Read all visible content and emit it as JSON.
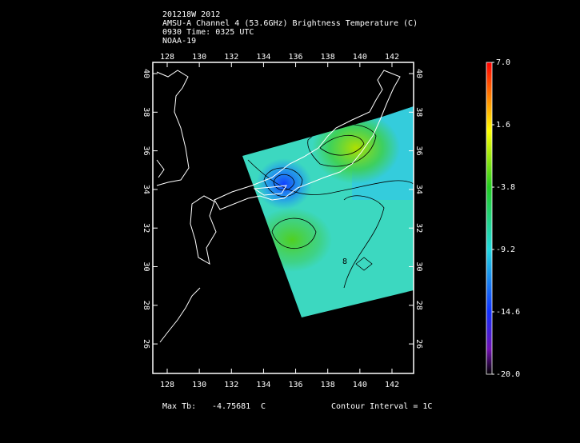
{
  "header": {
    "lines": [
      "201218W 2012",
      "AMSU-A Channel 4 (53.6GHz) Brightness Temperature (C)",
      "0930 Time: 0325 UTC",
      "NOAA-19"
    ]
  },
  "map": {
    "lon_ticks": [
      128,
      130,
      132,
      134,
      136,
      138,
      140,
      142
    ],
    "lat_ticks": [
      40,
      38,
      36,
      34,
      32,
      30,
      28,
      26
    ],
    "contour_labels": [
      "8"
    ]
  },
  "colorbar": {
    "ticks": [
      {
        "value": 7,
        "label": "7.0"
      },
      1.6,
      -3.8,
      -9.2,
      -14.6,
      {
        "value": -20,
        "label": "-20.0"
      }
    ]
  },
  "footer": {
    "max_label": "Max Tb:",
    "max_value": "-4.75681",
    "max_unit": "C",
    "contour_interval": "Contour Interval = 1C"
  }
}
